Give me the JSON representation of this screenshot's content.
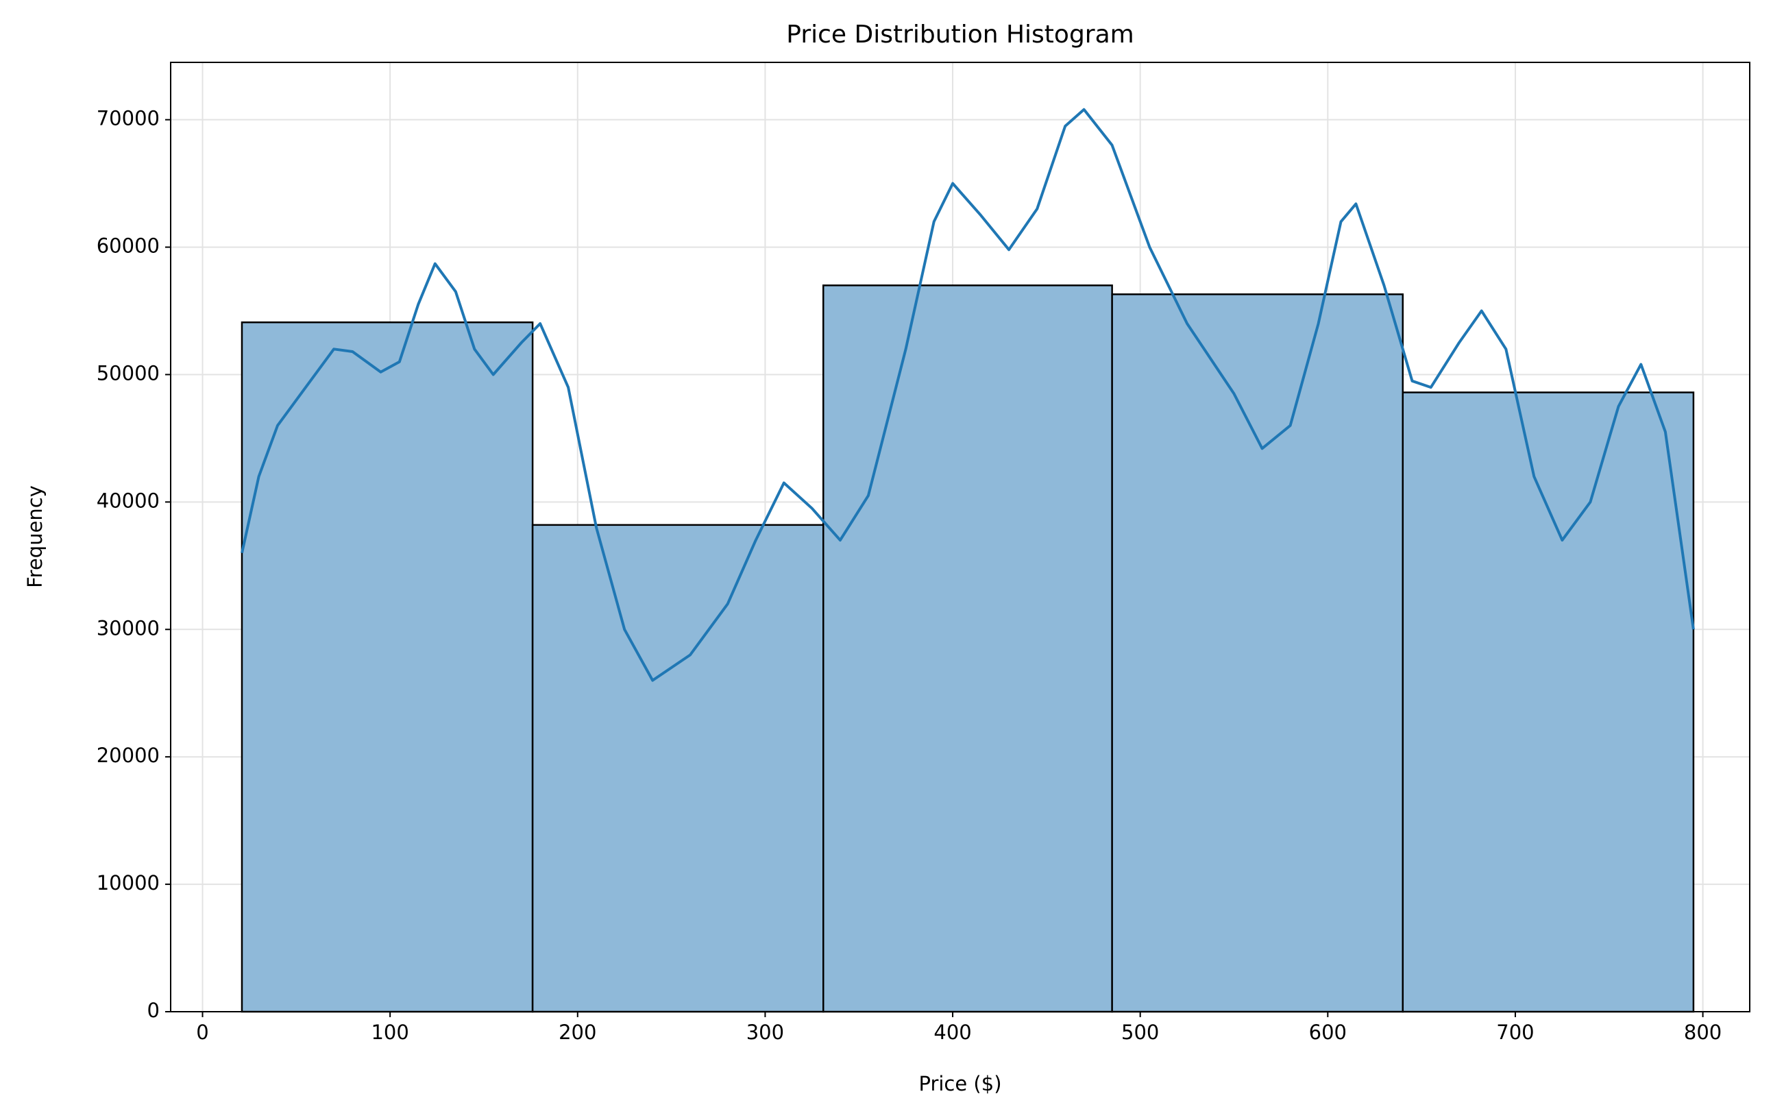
{
  "chart_data": {
    "type": "histogram",
    "title": "Price Distribution Histogram",
    "x_label": "Price ($)",
    "y_label": "Frequency",
    "bins": [
      21,
      176,
      331,
      485,
      640,
      795
    ],
    "values": [
      54100,
      38200,
      57000,
      56300,
      48600
    ],
    "color": "#8fb9d9",
    "edge_color": "#000000",
    "kde": {
      "color": "#1f77b4",
      "x": [
        21,
        30,
        40,
        55,
        70,
        80,
        95,
        105,
        115,
        124,
        135,
        145,
        155,
        170,
        180,
        195,
        210,
        225,
        240,
        260,
        280,
        295,
        310,
        325,
        340,
        355,
        375,
        390,
        400,
        415,
        430,
        445,
        460,
        470,
        485,
        505,
        525,
        550,
        565,
        580,
        595,
        607,
        615,
        630,
        645,
        655,
        670,
        682,
        695,
        710,
        725,
        740,
        755,
        767,
        780,
        795
      ],
      "values": [
        36000,
        42000,
        46000,
        49000,
        52000,
        51800,
        50200,
        51000,
        55500,
        58700,
        56500,
        52000,
        50000,
        52500,
        54000,
        49000,
        38000,
        30000,
        26000,
        28000,
        32000,
        37000,
        41500,
        39500,
        37000,
        40500,
        52000,
        62000,
        65000,
        62500,
        59800,
        63000,
        69500,
        70800,
        68000,
        60000,
        54000,
        48500,
        44200,
        46000,
        54000,
        62000,
        63400,
        57000,
        49500,
        49000,
        52500,
        55000,
        52000,
        42000,
        37000,
        40000,
        47500,
        50800,
        45500,
        30000
      ]
    },
    "xlim": [
      -17,
      825
    ],
    "ylim": [
      0,
      74500
    ],
    "xticks": [
      0,
      100,
      200,
      300,
      400,
      500,
      600,
      700,
      800
    ],
    "yticks": [
      0,
      10000,
      20000,
      30000,
      40000,
      50000,
      60000,
      70000
    ],
    "grid": true
  }
}
